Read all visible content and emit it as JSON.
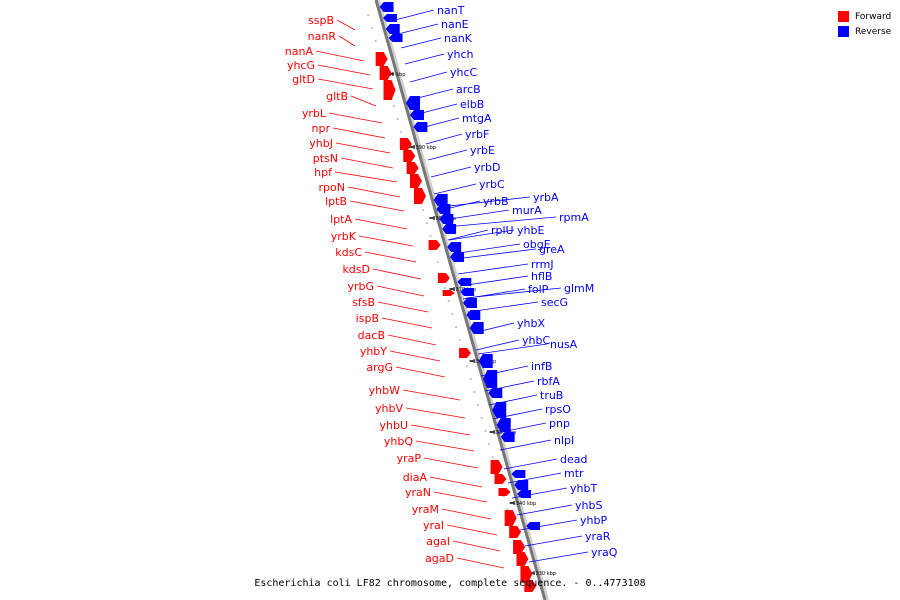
{
  "legend": {
    "forward_label": "Forward",
    "reverse_label": "Reverse",
    "forward_color": "#ff0000",
    "reverse_color": "#0000ff"
  },
  "caption": "Escherichia coli LF82 chromosome, complete sequence. - 0..4773108",
  "ticks": [
    "3400 kbp",
    "3390 kbp",
    "3380 kbp",
    "3370 kbp",
    "3360 kbp",
    "3350 kbp",
    "3340 kbp",
    "3330 kbp"
  ],
  "forward_genes": [
    "sspB",
    "nanR",
    "nanA",
    "yhcG",
    "gltD",
    "gltB",
    "yrbL",
    "npr",
    "yhbJ",
    "ptsN",
    "hpf",
    "rpoN",
    "lptB",
    "lptA",
    "yrbK",
    "kdsC",
    "kdsD",
    "yrbG",
    "sfsB",
    "ispB",
    "dacB",
    "yhbY",
    "argG",
    "yhbW",
    "yhbV",
    "yhbU",
    "yhbQ",
    "yraP",
    "diaA",
    "yraN",
    "yraM",
    "yraI",
    "agaI",
    "agaD"
  ],
  "reverse_genes": [
    "nanT",
    "nanE",
    "nanK",
    "yhch",
    "yhcC",
    "arcB",
    "elbB",
    "mtgA",
    "yrbF",
    "yrbE",
    "yrbD",
    "yrbC",
    "yrbB",
    "yrbA",
    "murA",
    "rpmA",
    "rplU",
    "yhbE",
    "obgE",
    "greA",
    "rrmJ",
    "hflB",
    "folP",
    "glmM",
    "secG",
    "yhbX",
    "yhbC",
    "nusA",
    "infB",
    "rbfA",
    "truB",
    "rpsO",
    "pnp",
    "nlpI",
    "dead",
    "mtr",
    "yhbT",
    "yhbS",
    "yhbP",
    "yraR",
    "yraQ"
  ]
}
